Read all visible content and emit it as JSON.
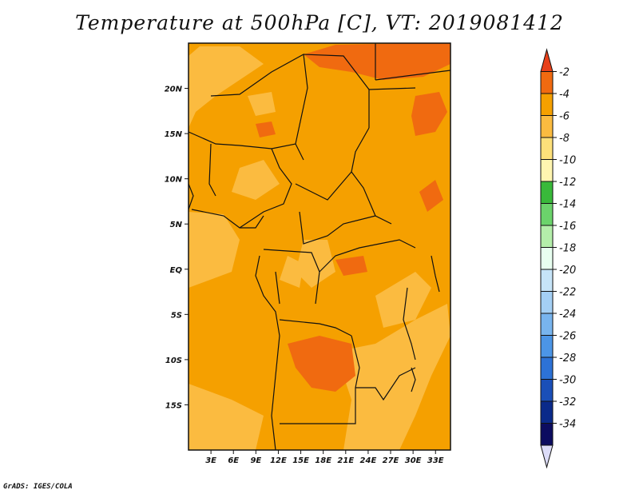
{
  "title": "Temperature at 500hPa [C], VT: 2019081412",
  "credit": "GrADS: IGES/COLA",
  "map": {
    "lon_range": [
      0,
      35
    ],
    "lat_range": [
      -20,
      25
    ],
    "lat_labels": [
      "20N",
      "15N",
      "10N",
      "5N",
      "EQ",
      "5S",
      "10S",
      "15S"
    ],
    "lon_labels": [
      "3E",
      "6E",
      "9E",
      "12E",
      "15E",
      "18E",
      "21E",
      "24E",
      "27E",
      "30E",
      "33E"
    ]
  },
  "colorbar": {
    "labels": [
      "-2",
      "-4",
      "-6",
      "-8",
      "-10",
      "-12",
      "-14",
      "-16",
      "-18",
      "-20",
      "-22",
      "-24",
      "-26",
      "-28",
      "-30",
      "-32",
      "-34"
    ],
    "colors": [
      "#e8401a",
      "#f06a10",
      "#f5a000",
      "#fbbb40",
      "#fde07a",
      "#fff5b0",
      "#39b93a",
      "#6bd36b",
      "#b4eeaa",
      "#e8fff0",
      "#c6e4f8",
      "#a4cff4",
      "#78b4ee",
      "#4c95e6",
      "#2d72d6",
      "#1a4fb8",
      "#0a2a8a",
      "#0c0c60",
      "#dcdcf8"
    ]
  }
}
